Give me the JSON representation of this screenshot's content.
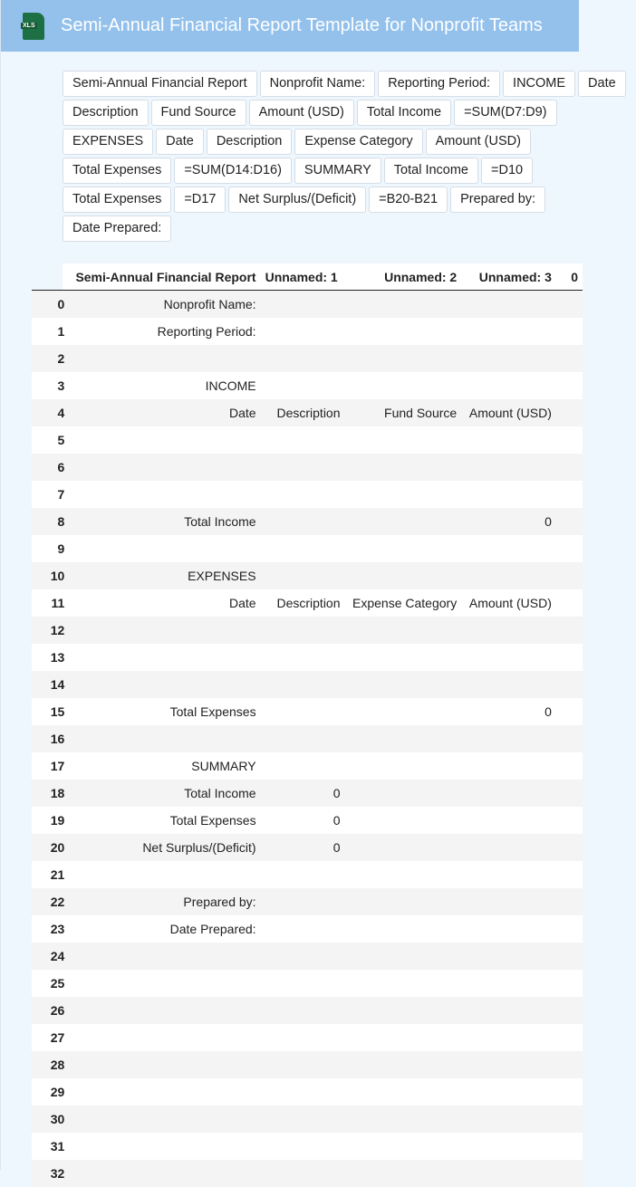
{
  "header": {
    "title": "Semi-Annual Financial Report Template for Nonprofit Teams",
    "icon": "xls-file-icon",
    "icon_label": "XLS"
  },
  "chips": [
    "Semi-Annual Financial Report",
    "Nonprofit Name:",
    "Reporting Period:",
    "INCOME",
    "Date",
    "Description",
    "Fund Source",
    "Amount (USD)",
    "Total Income",
    "=SUM(D7:D9)",
    "EXPENSES",
    "Date",
    "Description",
    "Expense Category",
    "Amount (USD)",
    "Total Expenses",
    "=SUM(D14:D16)",
    "SUMMARY",
    "Total Income",
    "=D10",
    "Total Expenses",
    "=D17",
    "Net Surplus/(Deficit)",
    "=B20-B21",
    "Prepared by:",
    "Date Prepared:"
  ],
  "table": {
    "columns": [
      "",
      "Semi-Annual Financial Report",
      "Unnamed: 1",
      "Unnamed: 2",
      "Unnamed: 3",
      "0"
    ],
    "rows": [
      [
        "0",
        "Nonprofit Name:",
        "",
        "",
        "",
        ""
      ],
      [
        "1",
        "Reporting Period:",
        "",
        "",
        "",
        ""
      ],
      [
        "2",
        "",
        "",
        "",
        "",
        ""
      ],
      [
        "3",
        "INCOME",
        "",
        "",
        "",
        ""
      ],
      [
        "4",
        "Date",
        "Description",
        "Fund Source",
        "Amount (USD)",
        ""
      ],
      [
        "5",
        "",
        "",
        "",
        "",
        ""
      ],
      [
        "6",
        "",
        "",
        "",
        "",
        ""
      ],
      [
        "7",
        "",
        "",
        "",
        "",
        ""
      ],
      [
        "8",
        "Total Income",
        "",
        "",
        "0",
        ""
      ],
      [
        "9",
        "",
        "",
        "",
        "",
        ""
      ],
      [
        "10",
        "EXPENSES",
        "",
        "",
        "",
        ""
      ],
      [
        "11",
        "Date",
        "Description",
        "Expense Category",
        "Amount (USD)",
        ""
      ],
      [
        "12",
        "",
        "",
        "",
        "",
        ""
      ],
      [
        "13",
        "",
        "",
        "",
        "",
        ""
      ],
      [
        "14",
        "",
        "",
        "",
        "",
        ""
      ],
      [
        "15",
        "Total Expenses",
        "",
        "",
        "0",
        ""
      ],
      [
        "16",
        "",
        "",
        "",
        "",
        ""
      ],
      [
        "17",
        "SUMMARY",
        "",
        "",
        "",
        ""
      ],
      [
        "18",
        "Total Income",
        "0",
        "",
        "",
        ""
      ],
      [
        "19",
        "Total Expenses",
        "0",
        "",
        "",
        ""
      ],
      [
        "20",
        "Net Surplus/(Deficit)",
        "0",
        "",
        "",
        ""
      ],
      [
        "21",
        "",
        "",
        "",
        "",
        ""
      ],
      [
        "22",
        "Prepared by:",
        "",
        "",
        "",
        ""
      ],
      [
        "23",
        "Date Prepared:",
        "",
        "",
        "",
        ""
      ],
      [
        "24",
        "",
        "",
        "",
        "",
        ""
      ],
      [
        "25",
        "",
        "",
        "",
        "",
        ""
      ],
      [
        "26",
        "",
        "",
        "",
        "",
        ""
      ],
      [
        "27",
        "",
        "",
        "",
        "",
        ""
      ],
      [
        "28",
        "",
        "",
        "",
        "",
        ""
      ],
      [
        "29",
        "",
        "",
        "",
        "",
        ""
      ],
      [
        "30",
        "",
        "",
        "",
        "",
        ""
      ],
      [
        "31",
        "",
        "",
        "",
        "",
        ""
      ],
      [
        "32",
        "",
        "",
        "",
        "",
        ""
      ]
    ]
  }
}
